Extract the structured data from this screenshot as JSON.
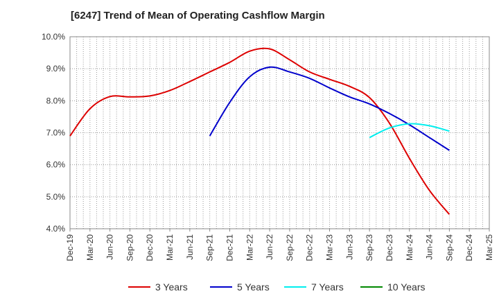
{
  "chart_data": {
    "type": "line",
    "title": "[6247]  Trend of Mean of Operating Cashflow Margin",
    "xlabel": "",
    "ylabel": "",
    "x": [
      "Dec-19",
      "Mar-20",
      "Jun-20",
      "Sep-20",
      "Dec-20",
      "Mar-21",
      "Jun-21",
      "Sep-21",
      "Dec-21",
      "Mar-22",
      "Jun-22",
      "Sep-22",
      "Dec-22",
      "Mar-23",
      "Jun-23",
      "Sep-23",
      "Dec-23",
      "Mar-24",
      "Jun-24",
      "Sep-24",
      "Dec-24",
      "Mar-25"
    ],
    "ylim": [
      4.0,
      10.0
    ],
    "yticks": [
      "4.0%",
      "5.0%",
      "6.0%",
      "7.0%",
      "8.0%",
      "9.0%",
      "10.0%"
    ],
    "grid": true,
    "legend_position": "bottom",
    "series": [
      {
        "name": "3 Years",
        "color": "#dd0000",
        "values": [
          6.9,
          7.75,
          8.13,
          8.12,
          8.15,
          8.32,
          8.6,
          8.9,
          9.2,
          9.55,
          9.62,
          9.28,
          8.9,
          8.67,
          8.45,
          8.1,
          7.3,
          6.2,
          5.2,
          4.45,
          null,
          null
        ]
      },
      {
        "name": "5 Years",
        "color": "#0000cc",
        "values": [
          null,
          null,
          null,
          null,
          null,
          null,
          null,
          6.9,
          7.95,
          8.75,
          9.05,
          8.9,
          8.7,
          8.4,
          8.12,
          7.9,
          7.6,
          7.25,
          6.85,
          6.45,
          null,
          null
        ]
      },
      {
        "name": "7 Years",
        "color": "#00eeee",
        "values": [
          null,
          null,
          null,
          null,
          null,
          null,
          null,
          null,
          null,
          null,
          null,
          null,
          null,
          null,
          null,
          6.85,
          7.15,
          7.28,
          7.22,
          7.05,
          null,
          null
        ]
      },
      {
        "name": "10 Years",
        "color": "#008800",
        "values": [
          null,
          null,
          null,
          null,
          null,
          null,
          null,
          null,
          null,
          null,
          null,
          null,
          null,
          null,
          null,
          null,
          null,
          null,
          null,
          null,
          null,
          null
        ]
      }
    ]
  }
}
